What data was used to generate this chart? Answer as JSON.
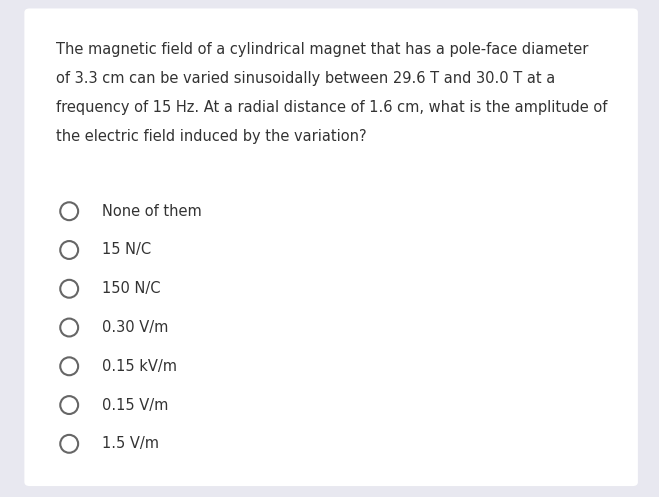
{
  "background_color": "#e8e8f0",
  "card_color": "#ffffff",
  "question_lines": [
    "The magnetic field of a cylindrical magnet that has a pole-face diameter",
    "of 3.3 cm can be varied sinusoidally between 29.6 T and 30.0 T at a",
    "frequency of 15 Hz. At a radial distance of 1.6 cm, what is the amplitude of",
    "the electric field induced by the variation?"
  ],
  "options": [
    "None of them",
    "15 N/C",
    "150 N/C",
    "0.30 V/m",
    "0.15 kV/m",
    "0.15 V/m",
    "1.5 V/m"
  ],
  "text_color": "#333333",
  "question_fontsize": 10.5,
  "option_fontsize": 10.5,
  "circle_edge_color": "#666666",
  "circle_face_color": "#ffffff",
  "circle_linewidth": 1.5
}
